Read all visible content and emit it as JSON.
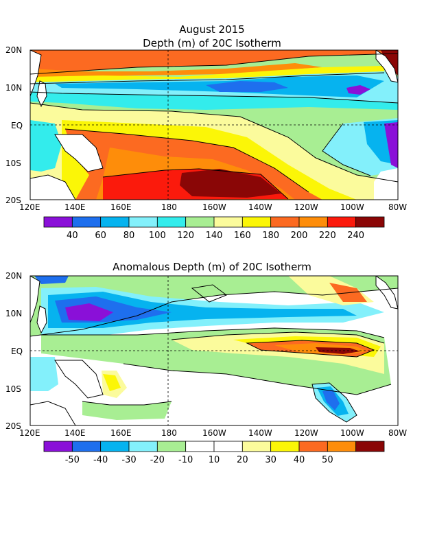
{
  "figure": {
    "main_title": "August 2015",
    "top_title": "Depth (m) of 20C Isotherm",
    "bottom_title": "Anomalous Depth (m) of 20C Isotherm"
  },
  "axes": {
    "lon_labels": [
      "120E",
      "140E",
      "160E",
      "180",
      "160W",
      "140W",
      "120W",
      "100W",
      "80W"
    ],
    "lat_labels": [
      "20N",
      "10N",
      "EQ",
      "10S",
      "20S"
    ]
  },
  "colorbars": {
    "top": {
      "colors": [
        "#8a10d8",
        "#1e6fee",
        "#06b3ef",
        "#83f0fb",
        "#33ecec",
        "#a8ee93",
        "#fbfb9c",
        "#fbf607",
        "#fc6a21",
        "#fe8d0a",
        "#fb1a0c",
        "#8a0606"
      ],
      "labels": [
        "40",
        "60",
        "80",
        "100",
        "120",
        "140",
        "160",
        "180",
        "200",
        "220",
        "240"
      ]
    },
    "bottom": {
      "colors": [
        "#8a10d8",
        "#1e6fee",
        "#06b3ef",
        "#83f0fb",
        "#a8ee93",
        "#ffffff",
        "#ffffff",
        "#fbfb9c",
        "#fbf607",
        "#fc6a21",
        "#fe8d0a",
        "#8a0606"
      ],
      "labels": [
        "-50",
        "-40",
        "-30",
        "-20",
        "-10",
        "10",
        "20",
        "30",
        "40",
        "50"
      ]
    }
  }
}
